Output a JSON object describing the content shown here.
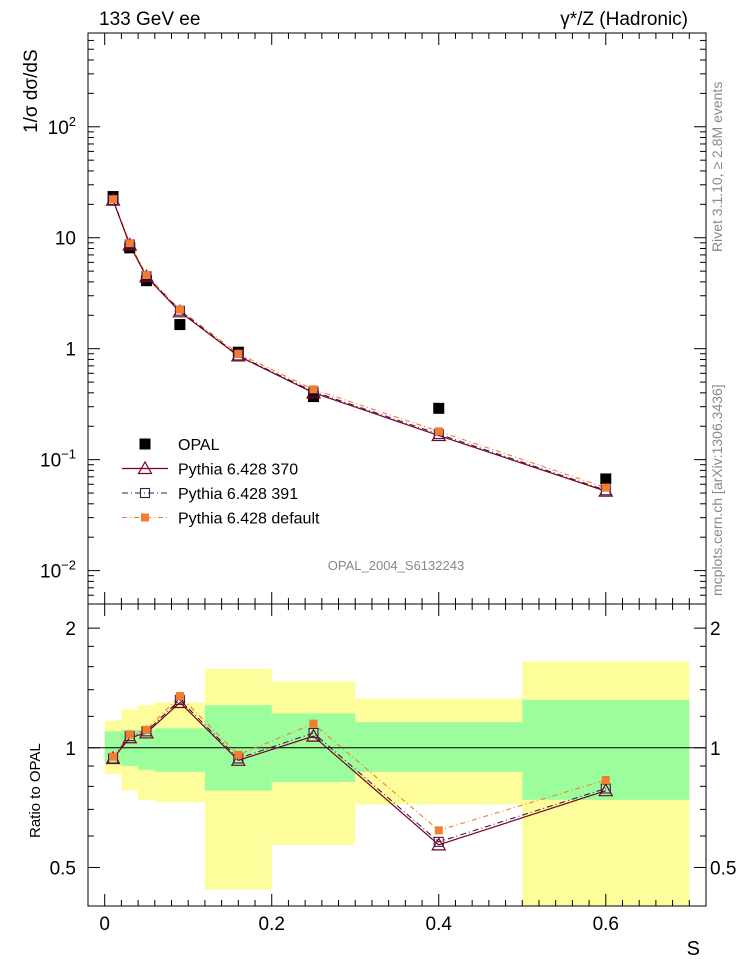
{
  "labels": {
    "energy": "133 GeV ee",
    "process": "γ*/Z (Hadronic)",
    "ylabel_main": "1/σ dσ/dS",
    "ylabel_ratio": "Ratio to OPAL",
    "xlabel": "S",
    "analysis_id": "OPAL_2004_S6132243",
    "side_rivet": "Rivet 3.1.10, ≥ 2.8M events",
    "side_mcplots": "mcplots.cern.ch [arXiv:1306.3436]"
  },
  "colors": {
    "data": "#000000",
    "p370": "#7a0020",
    "p391": "#3d1a4d",
    "pdef": "#f47c30",
    "band_inner": "#9cfd9c",
    "band_outer": "#fdfd9c"
  },
  "chart_data": [
    {
      "type": "scatter",
      "panel": "main",
      "yscale": "log",
      "xlim": [
        -0.02,
        0.72
      ],
      "ylim": [
        0.005,
        700
      ],
      "ylabel": "1/σ dσ/dS",
      "y_ticks": [
        {
          "value": 0.01,
          "mant": "10",
          "exp": "−2"
        },
        {
          "value": 0.1,
          "mant": "10",
          "exp": "−1"
        },
        {
          "value": 1,
          "mant": "1",
          "exp": ""
        },
        {
          "value": 10,
          "mant": "10",
          "exp": ""
        },
        {
          "value": 100,
          "mant": "10",
          "exp": "2"
        }
      ],
      "x": [
        0.01,
        0.03,
        0.05,
        0.09,
        0.16,
        0.25,
        0.4,
        0.6
      ],
      "series": [
        {
          "name": "OPAL",
          "key": "data",
          "values": [
            23.5,
            8.1,
            4.1,
            1.65,
            0.93,
            0.37,
            0.29,
            0.067
          ]
        },
        {
          "name": "Pythia 6.428 370",
          "key": "p370",
          "values": [
            21.8,
            8.6,
            4.45,
            2.15,
            0.86,
            0.4,
            0.165,
            0.052
          ]
        },
        {
          "name": "Pythia 6.428 391",
          "key": "p391",
          "values": [
            21.9,
            8.7,
            4.5,
            2.2,
            0.87,
            0.41,
            0.17,
            0.053
          ]
        },
        {
          "name": "Pythia 6.428 default",
          "key": "pdef",
          "values": [
            22.2,
            8.9,
            4.6,
            2.25,
            0.9,
            0.43,
            0.18,
            0.056
          ]
        }
      ],
      "legend_position": "bottom-left"
    },
    {
      "type": "line",
      "panel": "ratio",
      "ylabel": "Ratio to OPAL",
      "xlabel": "S",
      "xlim": [
        -0.02,
        0.72
      ],
      "ylim": [
        0.4,
        2.3
      ],
      "x_ticks": [
        "0",
        "0.2",
        "0.4",
        "0.6"
      ],
      "y_ticks": [
        "0.5",
        "1",
        "2"
      ],
      "bins": [
        {
          "lo": 0.0,
          "hi": 0.02,
          "inner": [
            0.92,
            1.1
          ],
          "outer": [
            0.86,
            1.17
          ]
        },
        {
          "lo": 0.02,
          "hi": 0.04,
          "inner": [
            0.9,
            1.11
          ],
          "outer": [
            0.78,
            1.25
          ]
        },
        {
          "lo": 0.04,
          "hi": 0.06,
          "inner": [
            0.88,
            1.11
          ],
          "outer": [
            0.74,
            1.28
          ]
        },
        {
          "lo": 0.06,
          "hi": 0.12,
          "inner": [
            0.87,
            1.12
          ],
          "outer": [
            0.73,
            1.3
          ]
        },
        {
          "lo": 0.12,
          "hi": 0.2,
          "inner": [
            0.78,
            1.28
          ],
          "outer": [
            0.44,
            1.58
          ]
        },
        {
          "lo": 0.2,
          "hi": 0.3,
          "inner": [
            0.82,
            1.22
          ],
          "outer": [
            0.57,
            1.47
          ]
        },
        {
          "lo": 0.3,
          "hi": 0.5,
          "inner": [
            0.87,
            1.16
          ],
          "outer": [
            0.72,
            1.33
          ]
        },
        {
          "lo": 0.5,
          "hi": 0.7,
          "inner": [
            0.74,
            1.32
          ],
          "outer": [
            0.4,
            1.65
          ]
        }
      ],
      "x": [
        0.01,
        0.03,
        0.05,
        0.09,
        0.16,
        0.25,
        0.4,
        0.6
      ],
      "series": [
        {
          "name": "Pythia 6.428 370",
          "key": "p370",
          "values": [
            0.94,
            1.06,
            1.09,
            1.3,
            0.93,
            1.07,
            0.57,
            0.78
          ]
        },
        {
          "name": "Pythia 6.428 391",
          "key": "p391",
          "values": [
            0.94,
            1.07,
            1.1,
            1.32,
            0.94,
            1.09,
            0.58,
            0.79
          ]
        },
        {
          "name": "Pythia 6.428 default",
          "key": "pdef",
          "values": [
            0.95,
            1.08,
            1.11,
            1.35,
            0.96,
            1.15,
            0.62,
            0.83
          ]
        }
      ]
    }
  ]
}
